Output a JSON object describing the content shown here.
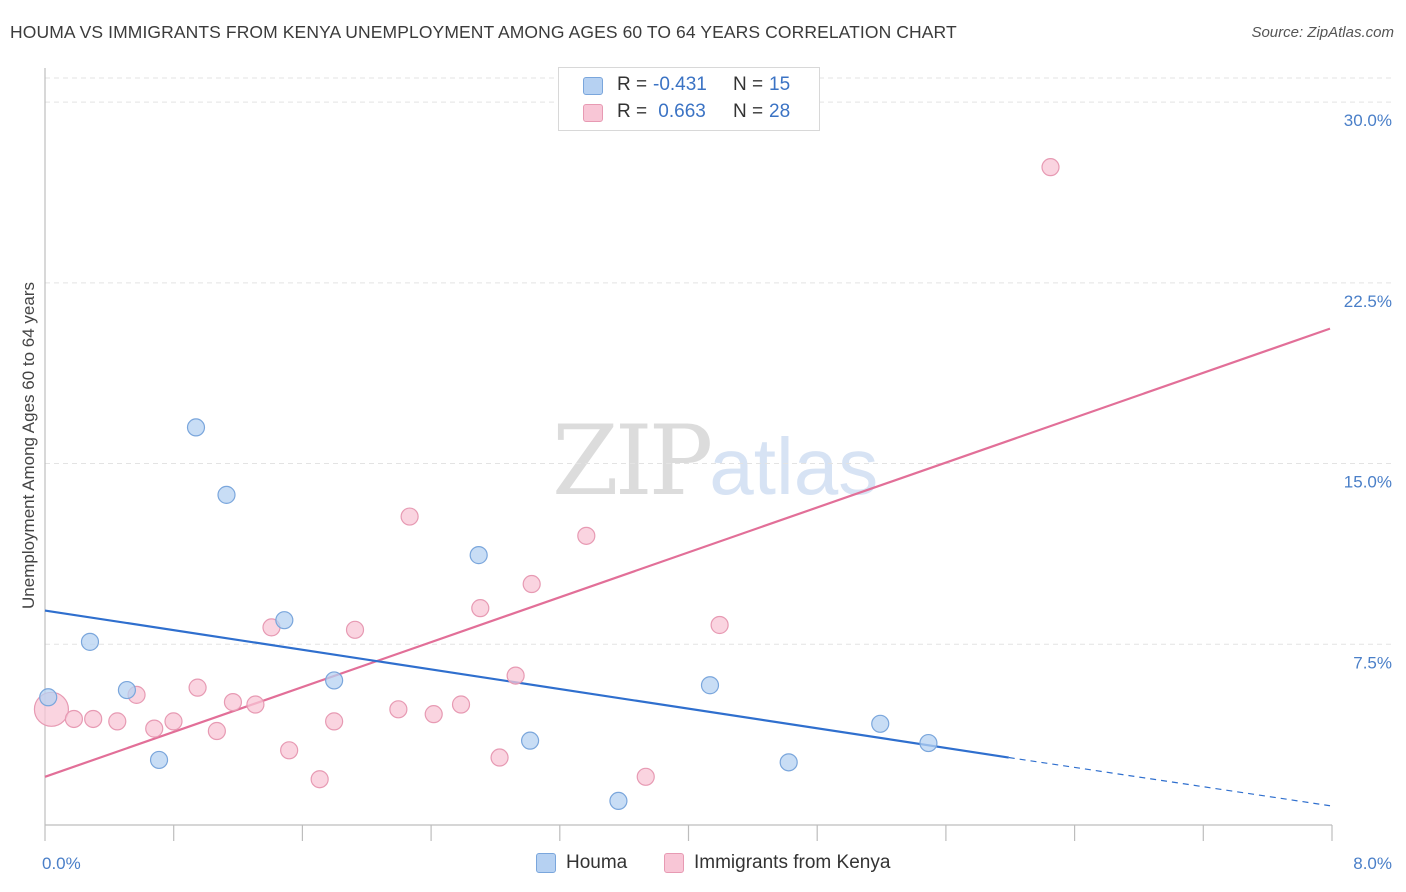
{
  "header": {
    "title": "HOUMA VS IMMIGRANTS FROM KENYA UNEMPLOYMENT AMONG AGES 60 TO 64 YEARS CORRELATION CHART",
    "source": "Source: ZipAtlas.com"
  },
  "watermark": {
    "zip": "ZIP",
    "atlas": "atlas"
  },
  "legend": {
    "rows": [
      {
        "r_label": "R =",
        "r_value": "-0.431",
        "n_label": "N =",
        "n_value": "15"
      },
      {
        "r_label": "R =",
        "r_value": " 0.663",
        "n_label": "N =",
        "n_value": "28"
      }
    ]
  },
  "bottom_legend": {
    "series1": "Houma",
    "series2": "Immigrants from Kenya"
  },
  "colors": {
    "houma_fill": "#b6d1f2",
    "houma_stroke": "#7aa6dc",
    "houma_line": "#2f6fce",
    "kenya_fill": "#f8c6d6",
    "kenya_stroke": "#e79ab3",
    "kenya_line": "#e26f98",
    "grid": "#e3e3e3",
    "tick_label": "#4a7fc8"
  },
  "chart_data": {
    "type": "scatter",
    "title": "HOUMA VS IMMIGRANTS FROM KENYA UNEMPLOYMENT AMONG AGES 60 TO 64 YEARS CORRELATION CHART",
    "xlabel": "",
    "ylabel": "Unemployment Among Ages 60 to 64 years",
    "xlim": [
      0,
      8
    ],
    "ylim": [
      0,
      31
    ],
    "x_tick_labels": [
      {
        "value": 0,
        "label": "0.0%"
      },
      {
        "value": 8,
        "label": "8.0%"
      }
    ],
    "y_ticks": [
      {
        "value": 7.5,
        "label": "7.5%"
      },
      {
        "value": 15,
        "label": "15.0%"
      },
      {
        "value": 22.5,
        "label": "22.5%"
      },
      {
        "value": 30,
        "label": "30.0%"
      }
    ],
    "grid": true,
    "legend_position": "top-center",
    "series": [
      {
        "name": "Houma",
        "points": [
          [
            0.02,
            5.3
          ],
          [
            0.28,
            7.6
          ],
          [
            0.51,
            5.6
          ],
          [
            0.71,
            2.7
          ],
          [
            0.94,
            16.5
          ],
          [
            1.13,
            13.7
          ],
          [
            1.49,
            8.5
          ],
          [
            1.8,
            6.0
          ],
          [
            2.7,
            11.2
          ],
          [
            3.02,
            3.5
          ],
          [
            3.57,
            1.0
          ],
          [
            4.14,
            5.8
          ],
          [
            4.63,
            2.6
          ],
          [
            5.2,
            4.2
          ],
          [
            5.5,
            3.4
          ]
        ],
        "trend": {
          "x": [
            0,
            6.0
          ],
          "y": [
            8.9,
            2.8
          ]
        },
        "trend_extension": {
          "x": [
            6.0,
            8.0
          ],
          "y": [
            2.8,
            0.8
          ]
        }
      },
      {
        "name": "Immigrants from Kenya",
        "points": [
          [
            0.04,
            4.8
          ],
          [
            0.18,
            4.4
          ],
          [
            0.3,
            4.4
          ],
          [
            0.45,
            4.3
          ],
          [
            0.57,
            5.4
          ],
          [
            0.68,
            4.0
          ],
          [
            0.8,
            4.3
          ],
          [
            0.95,
            5.7
          ],
          [
            1.07,
            3.9
          ],
          [
            1.17,
            5.1
          ],
          [
            1.31,
            5.0
          ],
          [
            1.41,
            8.2
          ],
          [
            1.52,
            3.1
          ],
          [
            1.71,
            1.9
          ],
          [
            1.8,
            4.3
          ],
          [
            1.93,
            8.1
          ],
          [
            2.2,
            4.8
          ],
          [
            2.27,
            12.8
          ],
          [
            2.42,
            4.6
          ],
          [
            2.59,
            5.0
          ],
          [
            2.71,
            9.0
          ],
          [
            2.83,
            2.8
          ],
          [
            2.93,
            6.2
          ],
          [
            3.03,
            10.0
          ],
          [
            3.37,
            12.0
          ],
          [
            3.74,
            2.0
          ],
          [
            4.2,
            8.3
          ],
          [
            6.26,
            27.3
          ]
        ],
        "trend": {
          "x": [
            0,
            8.0
          ],
          "y": [
            2.0,
            20.6
          ]
        }
      }
    ]
  }
}
